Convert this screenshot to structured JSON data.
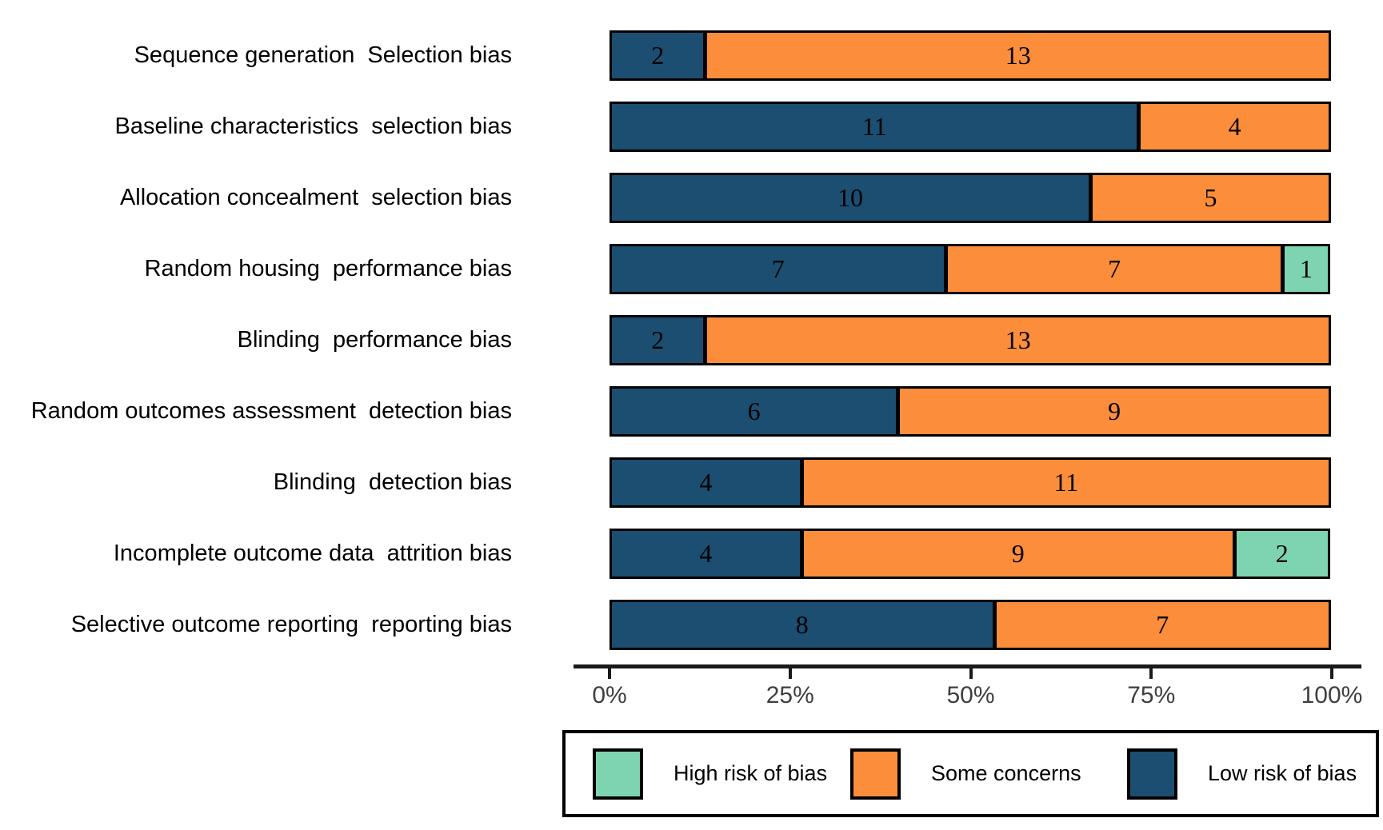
{
  "colors": {
    "low_risk": "#1b4e70",
    "some_concerns": "#fb8d3b",
    "high_risk": "#7ed4b0",
    "segment_border": "#000000",
    "axis": "#1a1a1a",
    "tick_label": "#3f3f3f"
  },
  "chart_data": {
    "type": "bar",
    "subtype": "horizontal-stacked",
    "title": "",
    "xlabel": "",
    "ylabel": "",
    "total_per_row": 15,
    "categories": [
      "Sequence generation  Selection bias",
      "Baseline characteristics  selection bias",
      "Allocation concealment  selection bias",
      "Random housing  performance bias",
      "Blinding  performance bias",
      "Random outcomes assessment  detection bias",
      "Blinding  detection bias",
      "Incomplete outcome data  attrition bias",
      "Selective outcome reporting  reporting bias"
    ],
    "series": [
      {
        "name": "Low risk of bias",
        "color_key": "low_risk",
        "values": [
          2,
          11,
          10,
          7,
          2,
          6,
          4,
          4,
          8
        ]
      },
      {
        "name": "Some concerns",
        "color_key": "some_concerns",
        "values": [
          13,
          4,
          5,
          7,
          13,
          9,
          11,
          9,
          7
        ]
      },
      {
        "name": "High risk of bias",
        "color_key": "high_risk",
        "values": [
          0,
          0,
          0,
          1,
          0,
          0,
          0,
          2,
          0
        ]
      }
    ],
    "x_axis": {
      "range_percent": [
        0,
        100
      ],
      "ticks": [
        "0%",
        "25%",
        "50%",
        "75%",
        "100%"
      ],
      "grid": false
    },
    "legend": {
      "position": "bottom",
      "items": [
        {
          "label": "High risk of bias",
          "color_key": "high_risk"
        },
        {
          "label": "Some concerns",
          "color_key": "some_concerns"
        },
        {
          "label": "Low risk of bias",
          "color_key": "low_risk"
        }
      ]
    }
  }
}
